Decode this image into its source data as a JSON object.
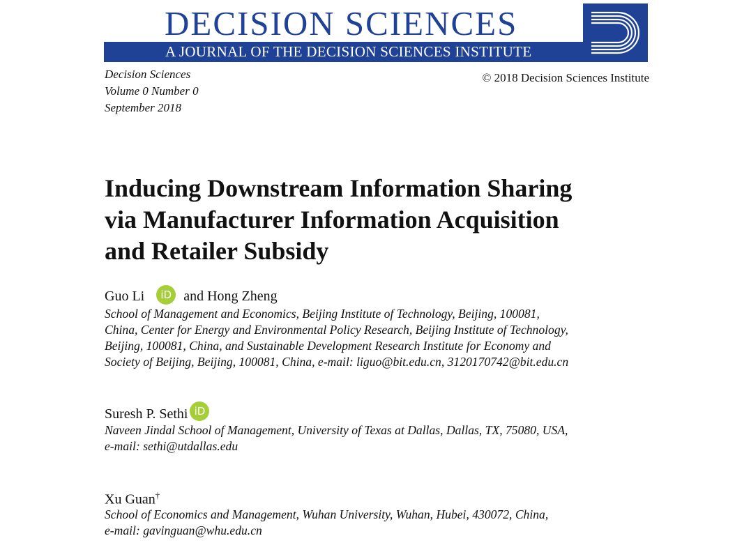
{
  "header": {
    "journal_name": "DECISION SCIENCES",
    "journal_subtitle": "A JOURNAL OF THE DECISION SCIENCES INSTITUTE",
    "brand_color": "#1f4296",
    "logo_icon": "decision-sciences-d-logo"
  },
  "meta": {
    "journal": "Decision Sciences",
    "volume": "Volume 0 Number 0",
    "date": "September 2018",
    "copyright": "© 2018 Decision Sciences Institute"
  },
  "title_lines": [
    "Inducing Downstream Information Sharing",
    "via Manufacturer Information Acquisition",
    "and Retailer Subsidy"
  ],
  "authors": [
    {
      "name_first": "Guo Li",
      "orcid_label": "iD",
      "name_second": "and Hong Zheng",
      "affiliation": [
        "School of Management and Economics, Beijing Institute of Technology, Beijing, 100081,",
        "China, Center for Energy and Environmental Policy Research, Beijing Institute of Technology,",
        "Beijing, 100081, China, and Sustainable Development Research Institute for Economy and",
        "Society of Beijing, Beijing, 100081, China, e-mail:  liguo@bit.edu.cn, 3120170742@bit.edu.cn"
      ]
    },
    {
      "name_first": "Suresh P. Sethi",
      "orcid_label": "iD",
      "affiliation": [
        "Naveen Jindal School of Management, University of Texas at Dallas, Dallas, TX, 75080, USA,",
        "e-mail:  sethi@utdallas.edu"
      ]
    },
    {
      "name_first": "Xu Guan",
      "mark": "†",
      "affiliation": [
        "School of Economics and Management, Wuhan University, Wuhan, Hubei, 430072, China,",
        "e-mail:  gavinguan@whu.edu.cn"
      ]
    }
  ],
  "orcid_color": "#a6ce39"
}
